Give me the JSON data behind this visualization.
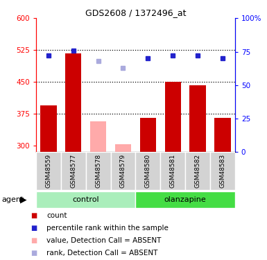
{
  "title": "GDS2608 / 1372496_at",
  "samples": [
    "GSM48559",
    "GSM48577",
    "GSM48578",
    "GSM48579",
    "GSM48580",
    "GSM48581",
    "GSM48582",
    "GSM48583"
  ],
  "groups": [
    "control",
    "control",
    "control",
    "control",
    "olanzapine",
    "olanzapine",
    "olanzapine",
    "olanzapine"
  ],
  "bar_values": [
    395,
    518,
    358,
    303,
    365,
    450,
    443,
    365
  ],
  "bar_absent": [
    false,
    false,
    true,
    true,
    false,
    false,
    false,
    false
  ],
  "dot_values": [
    72,
    76,
    68,
    63,
    70,
    72,
    72,
    70
  ],
  "dot_absent": [
    false,
    false,
    true,
    true,
    false,
    false,
    false,
    false
  ],
  "ylim_left": [
    285,
    600
  ],
  "ylim_right": [
    0,
    100
  ],
  "yticks_left": [
    300,
    375,
    450,
    525,
    600
  ],
  "yticks_right": [
    0,
    25,
    50,
    75,
    100
  ],
  "bar_color_present": "#cc0000",
  "bar_color_absent": "#ffaaaa",
  "dot_color_present": "#2222cc",
  "dot_color_absent": "#aaaadd",
  "group_color_control": "#aaeebb",
  "group_color_olanzapine": "#44dd44",
  "sample_bg": "#d3d3d3",
  "plot_bg": "#ffffff",
  "tick_label_fontsize": 7.5,
  "sample_fontsize": 6.5,
  "group_fontsize": 8,
  "legend_fontsize": 7.5,
  "title_fontsize": 9
}
